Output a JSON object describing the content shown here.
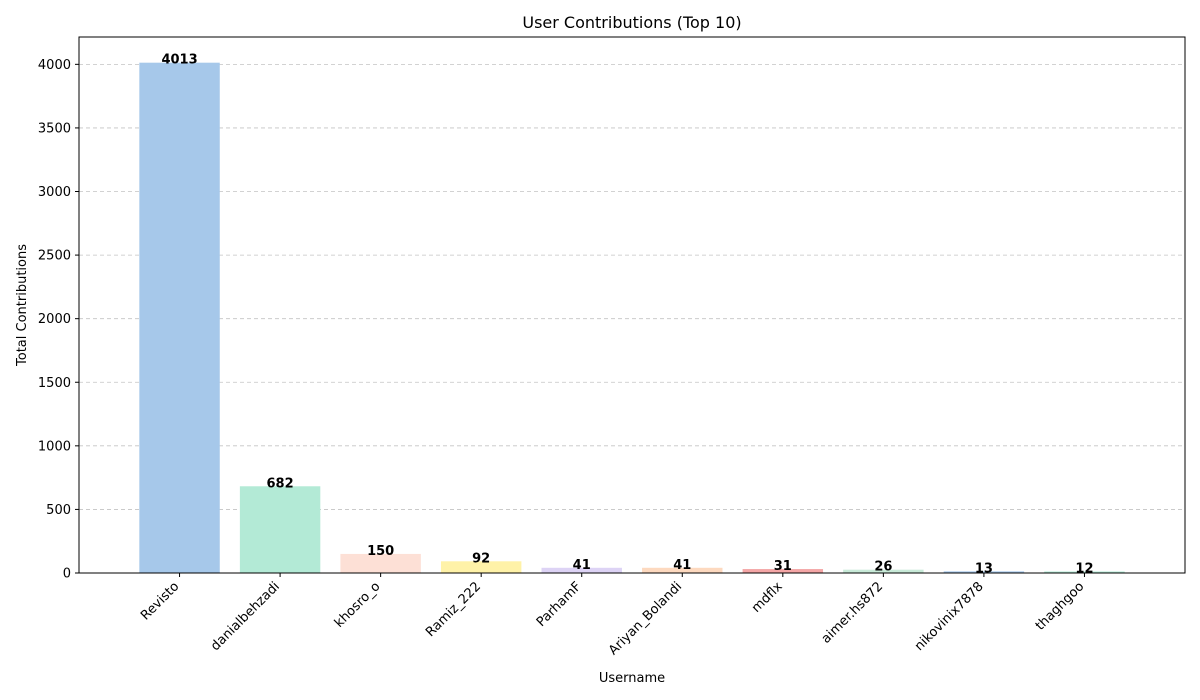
{
  "chart_data": {
    "type": "bar",
    "title": "User Contributions (Top 10)",
    "xlabel": "Username",
    "ylabel": "Total Contributions",
    "categories": [
      "Revisto",
      "danialbehzadi",
      "khosro_o",
      "Ramiz_222",
      "ParhamF",
      "Ariyan_Bolandi",
      "mdflx",
      "aimer.hs872",
      "nikovinix7878",
      "thaghgoo"
    ],
    "values": [
      4013,
      682,
      150,
      92,
      41,
      41,
      31,
      26,
      13,
      12
    ],
    "value_labels": [
      "4013",
      "682",
      "150",
      "92",
      "41",
      "41",
      "31",
      "26",
      "13",
      "12"
    ],
    "colors": [
      "#a6c8ea",
      "#b3ead6",
      "#fde0d6",
      "#fff2a8",
      "#ddd3f5",
      "#fdd9bf",
      "#f4a6a6",
      "#c8ead8",
      "#a6c8ea",
      "#b3ead6"
    ],
    "ylim": [
      0,
      4215
    ],
    "yticks": [
      0,
      500,
      1000,
      1500,
      2000,
      2500,
      3000,
      3500,
      4000
    ],
    "ytick_labels": [
      "0",
      "500",
      "1000",
      "1500",
      "2000",
      "2500",
      "3000",
      "3500",
      "4000"
    ],
    "grid": "y-dashed",
    "xtick_rotation": 45
  }
}
